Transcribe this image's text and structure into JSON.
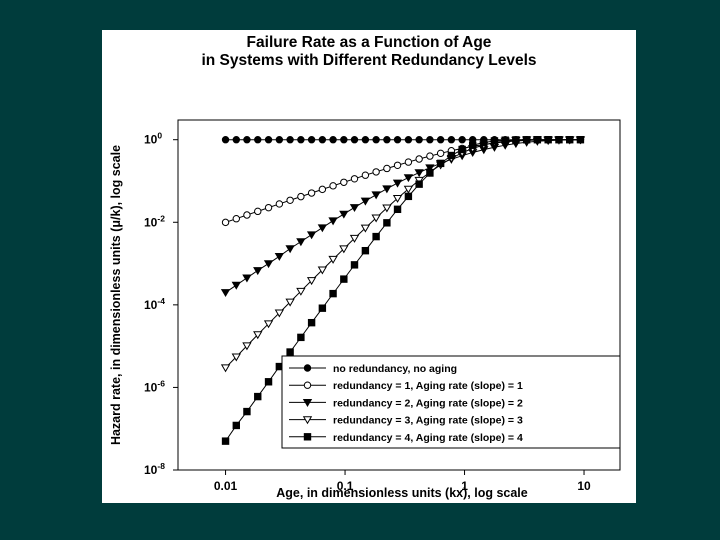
{
  "chart_data": {
    "type": "scatter",
    "title_lines": [
      "Failure Rate as a Function of Age",
      "in Systems with Different Redundancy Levels"
    ],
    "xlabel": "Age, in dimensionless units (kx), log scale",
    "ylabel": "Hazard rate, in dimensionless units (μ/k), log scale",
    "x_scale": "log",
    "y_scale": "log",
    "xlim": [
      0.004,
      20
    ],
    "ylim": [
      1e-08,
      3
    ],
    "x_ticks": [
      {
        "value": 0.01,
        "label": "0.01"
      },
      {
        "value": 0.1,
        "label": "0.1"
      },
      {
        "value": 1,
        "label": "1"
      },
      {
        "value": 10,
        "label": "10"
      }
    ],
    "y_ticks": [
      {
        "value": 1,
        "base": "10",
        "exp": "0"
      },
      {
        "value": 0.01,
        "base": "10",
        "exp": "-2"
      },
      {
        "value": 0.0001,
        "base": "10",
        "exp": "-4"
      },
      {
        "value": 1e-06,
        "base": "10",
        "exp": "-6"
      },
      {
        "value": 1e-08,
        "base": "10",
        "exp": "-8"
      }
    ],
    "x": [
      0.01,
      0.0123,
      0.0151,
      0.0186,
      0.0229,
      0.0282,
      0.0347,
      0.0427,
      0.0525,
      0.0646,
      0.0794,
      0.0977,
      0.12,
      0.148,
      0.182,
      0.224,
      0.275,
      0.339,
      0.417,
      0.513,
      0.631,
      0.776,
      0.955,
      1.17,
      1.45,
      1.78,
      2.19,
      2.69,
      3.31,
      4.07,
      5.01,
      6.17,
      7.59,
      9.33
    ],
    "series": [
      {
        "name": "no redundancy, no aging",
        "marker": "circle-filled",
        "values": [
          1,
          1,
          1,
          1,
          1,
          1,
          1,
          1,
          1,
          1,
          1,
          1,
          1,
          1,
          1,
          1,
          1,
          1,
          1,
          1,
          1,
          1,
          1,
          1,
          1,
          1,
          1,
          1,
          1,
          1,
          1,
          1,
          1,
          1
        ]
      },
      {
        "name": "redundancy = 1, Aging rate (slope) = 1",
        "marker": "circle-open",
        "values": [
          0.00995,
          0.0122,
          0.015,
          0.0184,
          0.0226,
          0.0278,
          0.0341,
          0.0418,
          0.0511,
          0.0626,
          0.0763,
          0.0931,
          0.113,
          0.138,
          0.166,
          0.201,
          0.24,
          0.287,
          0.341,
          0.401,
          0.468,
          0.54,
          0.615,
          0.69,
          0.765,
          0.831,
          0.888,
          0.932,
          0.963,
          0.983,
          0.993,
          0.998,
          0.999,
          1
        ]
      },
      {
        "name": "redundancy = 2, Aging rate (slope) = 2",
        "marker": "triangle-down-filled",
        "values": [
          0.0002,
          0.0003,
          0.00045,
          0.00068,
          0.001,
          0.0015,
          0.0023,
          0.0034,
          0.005,
          0.0074,
          0.0109,
          0.0158,
          0.0229,
          0.0328,
          0.0464,
          0.0649,
          0.0893,
          0.121,
          0.16,
          0.21,
          0.268,
          0.335,
          0.41,
          0.491,
          0.574,
          0.656,
          0.736,
          0.808,
          0.868,
          0.918,
          0.952,
          0.975,
          0.988,
          0.995
        ]
      },
      {
        "name": "redundancy = 3, Aging rate (slope) = 3",
        "marker": "triangle-down-open",
        "values": [
          3e-06,
          5.5e-06,
          1.02e-05,
          1.9e-05,
          3.5e-05,
          6.4e-05,
          0.000117,
          0.000214,
          0.000389,
          0.000704,
          0.00127,
          0.00228,
          0.0041,
          0.00728,
          0.0128,
          0.0223,
          0.0381,
          0.0638,
          0.104,
          0.163,
          0.246,
          0.354,
          0.48,
          0.617,
          0.745,
          0.852,
          0.926,
          0.969,
          0.989,
          0.997,
          0.999,
          1,
          1,
          1
        ]
      },
      {
        "name": "redundancy = 4, Aging rate (slope) = 4",
        "marker": "square-filled",
        "values": [
          5e-08,
          1.2e-07,
          2.6e-07,
          6e-07,
          1.37e-06,
          3.2e-06,
          7.2e-06,
          1.63e-05,
          3.7e-05,
          8.3e-05,
          0.000187,
          0.00042,
          0.00093,
          0.00205,
          0.0045,
          0.0097,
          0.0206,
          0.0424,
          0.0838,
          0.156,
          0.267,
          0.414,
          0.579,
          0.733,
          0.854,
          0.932,
          0.972,
          0.99,
          0.997,
          0.999,
          1,
          1,
          1,
          1
        ]
      }
    ],
    "legend_position": "bottom-right",
    "grid": false
  }
}
